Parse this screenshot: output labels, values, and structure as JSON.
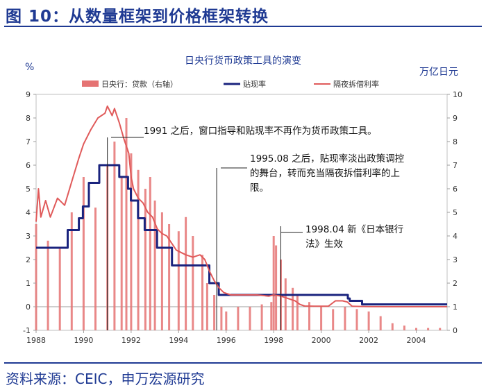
{
  "figure": {
    "title": "图 10：从数量框架到价格框架转换",
    "source": "资料来源：CEIC，申万宏源研究"
  },
  "colors": {
    "header_blue": "#1f3a93",
    "loans": "#e57373",
    "discount": "#1a237e",
    "overnight": "#e05a5a",
    "axis_text": "#333333"
  },
  "chart_data": {
    "type": "bar+line",
    "title": "日央行货币政策工具的演变",
    "y_left_label": "%",
    "y_right_label": "万亿日元",
    "y_left_range": [
      -1,
      9
    ],
    "y_right_range": [
      0,
      10
    ],
    "y_left_ticks": [
      "-1",
      "0",
      "1",
      "2",
      "3",
      "4",
      "5",
      "6",
      "7",
      "8",
      "9"
    ],
    "y_right_ticks": [
      "0",
      "1",
      "2",
      "3",
      "4",
      "5",
      "6",
      "7",
      "8",
      "9",
      "10"
    ],
    "x_range": [
      1988,
      2005.3
    ],
    "x_ticks": [
      "1988",
      "1990",
      "1992",
      "1994",
      "1996",
      "1998",
      "2000",
      "2002",
      "2004"
    ],
    "legend": [
      "日央行：贷款（右轴）",
      "贴现率",
      "隔夜拆借利率"
    ],
    "legend_position": "top",
    "series": [
      {
        "name": "日央行：贷款（右轴）",
        "type": "bar",
        "axis": "right",
        "points": [
          [
            1988.0,
            4.5
          ],
          [
            1988.5,
            3.8
          ],
          [
            1989.0,
            3.5
          ],
          [
            1989.5,
            5.0
          ],
          [
            1990.0,
            6.5
          ],
          [
            1990.5,
            5.2
          ],
          [
            1991.0,
            7.0
          ],
          [
            1991.3,
            8.0
          ],
          [
            1991.6,
            6.5
          ],
          [
            1991.8,
            9.0
          ],
          [
            1992.0,
            7.5
          ],
          [
            1992.3,
            6.8
          ],
          [
            1992.6,
            6.0
          ],
          [
            1992.8,
            6.5
          ],
          [
            1993.0,
            5.5
          ],
          [
            1993.3,
            5.0
          ],
          [
            1993.6,
            4.5
          ],
          [
            1994.0,
            4.2
          ],
          [
            1994.3,
            4.8
          ],
          [
            1994.6,
            4.0
          ],
          [
            1995.0,
            3.2
          ],
          [
            1995.2,
            2.0
          ],
          [
            1995.5,
            1.5
          ],
          [
            1995.8,
            1.0
          ],
          [
            1996.0,
            0.8
          ],
          [
            1996.5,
            1.0
          ],
          [
            1997.0,
            1.0
          ],
          [
            1997.5,
            1.1
          ],
          [
            1997.9,
            1.2
          ],
          [
            1998.0,
            4.0
          ],
          [
            1998.1,
            3.6
          ],
          [
            1998.3,
            3.0
          ],
          [
            1998.5,
            2.2
          ],
          [
            1998.8,
            1.8
          ],
          [
            1999.0,
            1.5
          ],
          [
            1999.5,
            1.2
          ],
          [
            2000.0,
            1.0
          ],
          [
            2000.5,
            0.9
          ],
          [
            2001.0,
            1.0
          ],
          [
            2001.5,
            0.9
          ],
          [
            2002.0,
            0.8
          ],
          [
            2002.5,
            0.6
          ],
          [
            2003.0,
            0.3
          ],
          [
            2003.5,
            0.2
          ],
          [
            2004.0,
            0.1
          ],
          [
            2004.5,
            0.1
          ],
          [
            2005.0,
            0.1
          ]
        ]
      },
      {
        "name": "贴现率",
        "type": "line",
        "axis": "left",
        "points": [
          [
            1988.0,
            2.5
          ],
          [
            1989.33,
            2.5
          ],
          [
            1989.33,
            3.25
          ],
          [
            1989.8,
            3.25
          ],
          [
            1989.8,
            3.75
          ],
          [
            1989.97,
            3.75
          ],
          [
            1989.97,
            4.25
          ],
          [
            1990.22,
            4.25
          ],
          [
            1990.22,
            5.25
          ],
          [
            1990.66,
            5.25
          ],
          [
            1990.66,
            6.0
          ],
          [
            1991.5,
            6.0
          ],
          [
            1991.5,
            5.5
          ],
          [
            1991.87,
            5.5
          ],
          [
            1991.87,
            5.0
          ],
          [
            1991.99,
            5.0
          ],
          [
            1991.99,
            4.5
          ],
          [
            1992.29,
            4.5
          ],
          [
            1992.29,
            3.75
          ],
          [
            1992.57,
            3.75
          ],
          [
            1992.57,
            3.25
          ],
          [
            1993.09,
            3.25
          ],
          [
            1993.09,
            2.5
          ],
          [
            1993.72,
            2.5
          ],
          [
            1993.72,
            1.75
          ],
          [
            1995.29,
            1.75
          ],
          [
            1995.29,
            1.0
          ],
          [
            1995.69,
            1.0
          ],
          [
            1995.69,
            0.5
          ],
          [
            2001.12,
            0.5
          ],
          [
            2001.12,
            0.35
          ],
          [
            2001.2,
            0.35
          ],
          [
            2001.2,
            0.25
          ],
          [
            2001.72,
            0.25
          ],
          [
            2001.72,
            0.1
          ],
          [
            2005.3,
            0.1
          ]
        ]
      },
      {
        "name": "隔夜拆借利率",
        "type": "line",
        "axis": "left",
        "points": [
          [
            1988.0,
            3.6
          ],
          [
            1988.1,
            5.0
          ],
          [
            1988.2,
            3.8
          ],
          [
            1988.4,
            4.5
          ],
          [
            1988.6,
            3.8
          ],
          [
            1988.9,
            4.6
          ],
          [
            1989.2,
            4.3
          ],
          [
            1989.5,
            5.3
          ],
          [
            1989.8,
            6.3
          ],
          [
            1990.0,
            6.9
          ],
          [
            1990.3,
            7.5
          ],
          [
            1990.6,
            8.0
          ],
          [
            1990.9,
            8.2
          ],
          [
            1991.0,
            8.5
          ],
          [
            1991.2,
            8.1
          ],
          [
            1991.3,
            8.4
          ],
          [
            1991.5,
            7.8
          ],
          [
            1991.7,
            7.1
          ],
          [
            1991.9,
            6.5
          ],
          [
            1992.0,
            5.5
          ],
          [
            1992.1,
            5.0
          ],
          [
            1992.3,
            4.6
          ],
          [
            1992.5,
            4.4
          ],
          [
            1992.7,
            4.0
          ],
          [
            1992.9,
            3.8
          ],
          [
            1993.1,
            3.3
          ],
          [
            1993.3,
            3.1
          ],
          [
            1993.5,
            3.0
          ],
          [
            1993.7,
            2.7
          ],
          [
            1993.9,
            2.4
          ],
          [
            1994.1,
            2.3
          ],
          [
            1994.3,
            2.2
          ],
          [
            1994.6,
            2.1
          ],
          [
            1994.9,
            2.2
          ],
          [
            1995.1,
            2.0
          ],
          [
            1995.3,
            1.5
          ],
          [
            1995.5,
            1.1
          ],
          [
            1995.7,
            0.8
          ],
          [
            1995.9,
            0.6
          ],
          [
            1996.2,
            0.5
          ],
          [
            1996.8,
            0.5
          ],
          [
            1997.3,
            0.5
          ],
          [
            1997.8,
            0.45
          ],
          [
            1998.0,
            0.5
          ],
          [
            1998.3,
            0.45
          ],
          [
            1998.6,
            0.35
          ],
          [
            1998.9,
            0.25
          ],
          [
            1999.1,
            0.1
          ],
          [
            1999.3,
            0.03
          ],
          [
            1999.7,
            0.02
          ],
          [
            2000.0,
            0.02
          ],
          [
            2000.3,
            0.02
          ],
          [
            2000.6,
            0.25
          ],
          [
            2000.9,
            0.25
          ],
          [
            2001.1,
            0.2
          ],
          [
            2001.3,
            0.02
          ],
          [
            2002.0,
            0.002
          ],
          [
            2003.0,
            0.001
          ],
          [
            2004.0,
            0.001
          ],
          [
            2005.3,
            0.001
          ]
        ]
      }
    ],
    "annotations": [
      {
        "lines": [
          "1991 之后，窗口指导和贴现率不再作为货币政策工具。"
        ],
        "x": 1991.0
      },
      {
        "lines": [
          "1995.08 之后，贴现率淡出政策调控",
          "的舞台，转而充当隔夜拆借利率的上",
          "限。"
        ],
        "x": 1995.6
      },
      {
        "lines": [
          "1998.04 新《日本银行",
          "法》生效"
        ],
        "x": 1998.3
      }
    ]
  }
}
